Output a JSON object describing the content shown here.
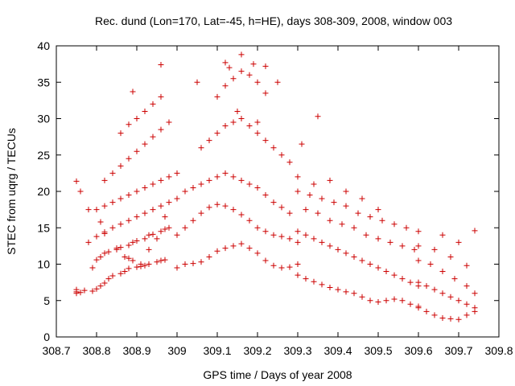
{
  "chart_data": {
    "type": "scatter",
    "title": "Rec. dund (Lon=170, Lat=-45, h=HE), days 308-309, 2008, window 003",
    "xlabel": "GPS time / Days of year 2008",
    "ylabel": "STEC from uqrg / TECUs",
    "xlim": [
      308.7,
      309.8
    ],
    "ylim": [
      0,
      40
    ],
    "xticks": [
      308.7,
      308.8,
      308.9,
      309.0,
      309.1,
      309.2,
      309.3,
      309.4,
      309.5,
      309.6,
      309.7,
      309.8
    ],
    "xtick_labels": [
      "308.7",
      "308.8",
      "308.9",
      "309",
      "309.1",
      "309.2",
      "309.3",
      "309.4",
      "309.5",
      "309.6",
      "309.7",
      "309.8"
    ],
    "yticks": [
      0,
      5,
      10,
      15,
      20,
      25,
      30,
      35,
      40
    ],
    "ytick_labels": [
      "0",
      "5",
      "10",
      "15",
      "20",
      "25",
      "30",
      "35",
      "40"
    ],
    "grid": false,
    "marker": "plus",
    "color": "#cc0000",
    "series": [
      {
        "x": [
          308.75,
          308.75,
          308.75,
          308.76,
          308.77,
          308.79,
          308.8,
          308.81,
          308.82,
          308.83,
          308.84,
          308.86,
          308.87,
          308.88,
          308.9,
          308.91,
          308.92,
          308.93,
          308.95,
          308.96,
          308.97,
          308.79,
          308.8,
          308.81,
          308.82,
          308.83,
          308.85,
          308.86,
          308.88,
          308.89,
          308.9,
          308.92,
          308.93,
          308.94,
          308.96,
          308.97,
          308.98,
          308.78,
          308.8,
          308.82,
          308.84,
          308.86,
          308.88,
          308.9,
          308.92,
          308.94,
          308.96,
          308.98,
          309.0,
          308.8,
          308.82,
          308.84,
          308.86,
          308.88,
          308.9,
          308.92,
          308.94,
          308.96,
          308.98,
          309.0,
          308.82,
          308.84,
          308.86,
          308.88,
          308.9,
          308.92,
          308.94,
          308.96,
          308.98,
          308.86,
          308.88,
          308.9,
          308.92,
          308.94,
          308.96,
          308.75,
          308.76,
          308.78,
          308.81,
          308.82,
          308.85,
          308.87,
          308.88,
          308.89,
          308.91,
          308.93,
          308.95,
          308.97
        ],
        "y": [
          6,
          6.2,
          6.5,
          6.1,
          6.4,
          6.3,
          6.6,
          7.0,
          7.4,
          8.0,
          8.4,
          8.7,
          9.0,
          9.4,
          9.6,
          9.7,
          9.8,
          10.0,
          10.3,
          10.5,
          10.6,
          9.5,
          10.6,
          11.0,
          11.5,
          11.7,
          12.0,
          12.3,
          12.6,
          13.0,
          13.2,
          13.5,
          14.0,
          14.1,
          14.5,
          14.8,
          15.0,
          13.0,
          13.8,
          14.4,
          15.0,
          15.5,
          16.0,
          16.5,
          17.0,
          17.5,
          18.0,
          18.5,
          19.0,
          17.5,
          18.0,
          18.5,
          19.0,
          19.5,
          20.0,
          20.5,
          21.0,
          21.5,
          22.0,
          22.5,
          21.5,
          22.5,
          23.5,
          24.5,
          25.5,
          26.5,
          27.5,
          28.5,
          29.5,
          28.0,
          29.2,
          30.0,
          31.0,
          32.0,
          33.0,
          21.4,
          20.0,
          17.5,
          15.8,
          14.2,
          12.2,
          11.0,
          10.8,
          10.5,
          10.0,
          12.0,
          13.5,
          16.5
        ]
      },
      {
        "x": [
          309.0,
          309.02,
          309.04,
          309.06,
          309.08,
          309.1,
          309.12,
          309.14,
          309.16,
          309.18,
          309.2,
          309.22,
          309.24,
          309.26,
          309.28,
          309.3,
          309.0,
          309.02,
          309.04,
          309.06,
          309.08,
          309.1,
          309.12,
          309.14,
          309.16,
          309.18,
          309.2,
          309.22,
          309.24,
          309.26,
          309.28,
          309.3,
          309.02,
          309.04,
          309.06,
          309.08,
          309.1,
          309.12,
          309.14,
          309.16,
          309.18,
          309.2,
          309.22,
          309.24,
          309.26,
          309.28,
          309.06,
          309.08,
          309.1,
          309.12,
          309.14,
          309.16,
          309.18,
          309.2,
          309.22,
          309.24,
          309.26,
          309.28,
          309.1,
          309.12,
          309.14,
          309.16,
          309.18,
          309.2,
          309.22,
          309.13,
          309.16,
          309.19,
          309.22,
          309.05,
          309.15,
          309.25,
          309.12,
          309.2,
          308.96,
          308.89
        ],
        "y": [
          9.5,
          10.0,
          10.1,
          10.3,
          11.0,
          11.8,
          12.2,
          12.5,
          12.8,
          12.2,
          11.5,
          10.5,
          9.8,
          9.5,
          9.6,
          10.0,
          14.0,
          15.0,
          16.0,
          17.0,
          17.8,
          18.2,
          18.0,
          17.5,
          16.8,
          16.0,
          15.0,
          14.5,
          14.0,
          13.8,
          13.5,
          13.0,
          20.0,
          20.5,
          21.0,
          21.5,
          22.0,
          22.5,
          22.0,
          21.5,
          21.0,
          20.5,
          19.5,
          18.5,
          17.8,
          17.0,
          26.0,
          27.0,
          28.0,
          29.0,
          29.5,
          30.0,
          29.0,
          28.0,
          27.0,
          26.0,
          25.0,
          24.0,
          33.0,
          34.5,
          35.5,
          36.5,
          36.0,
          35.0,
          33.5,
          37.0,
          38.8,
          37.5,
          37.2,
          35.0,
          31.0,
          35.0,
          37.7,
          29.5,
          37.4,
          33.7
        ]
      },
      {
        "x": [
          309.3,
          309.32,
          309.34,
          309.36,
          309.38,
          309.4,
          309.42,
          309.44,
          309.46,
          309.48,
          309.5,
          309.52,
          309.54,
          309.56,
          309.58,
          309.6,
          309.3,
          309.32,
          309.34,
          309.36,
          309.38,
          309.4,
          309.42,
          309.44,
          309.46,
          309.48,
          309.5,
          309.52,
          309.54,
          309.56,
          309.58,
          309.6,
          309.3,
          309.33,
          309.36,
          309.39,
          309.42,
          309.45,
          309.48,
          309.51,
          309.54,
          309.57,
          309.6,
          309.32,
          309.35,
          309.38,
          309.41,
          309.44,
          309.47,
          309.5,
          309.53,
          309.56,
          309.59,
          309.3,
          309.34,
          309.38,
          309.42,
          309.46,
          309.5,
          309.35,
          309.31
        ],
        "y": [
          8.5,
          8.0,
          7.6,
          7.2,
          6.8,
          6.5,
          6.2,
          6.0,
          5.5,
          5.0,
          4.8,
          5.0,
          5.2,
          5.0,
          4.5,
          4.2,
          14.5,
          14.0,
          13.5,
          13.0,
          12.5,
          12.0,
          11.5,
          11.0,
          10.5,
          10.0,
          9.5,
          9.0,
          8.5,
          8.0,
          7.5,
          7.0,
          20.0,
          19.5,
          19.0,
          18.5,
          18.0,
          17.0,
          16.5,
          16.0,
          15.5,
          15.0,
          14.5,
          17.5,
          17.0,
          16.0,
          15.5,
          15.0,
          14.0,
          13.5,
          13.0,
          12.5,
          12.0,
          22.0,
          21.0,
          21.5,
          20.0,
          19.0,
          17.5,
          30.3,
          26.5
        ]
      },
      {
        "x": [
          309.6,
          309.62,
          309.64,
          309.66,
          309.68,
          309.7,
          309.72,
          309.74,
          309.6,
          309.62,
          309.64,
          309.66,
          309.68,
          309.7,
          309.72,
          309.74,
          309.6,
          309.63,
          309.66,
          309.69,
          309.72,
          309.74,
          309.6,
          309.64,
          309.68,
          309.72,
          309.74,
          309.66,
          309.7
        ],
        "y": [
          4.0,
          3.5,
          3.0,
          2.6,
          2.5,
          2.4,
          3.0,
          3.5,
          7.5,
          7.0,
          6.5,
          6.0,
          5.5,
          5.0,
          4.5,
          4.0,
          10.5,
          10.0,
          9.0,
          8.0,
          7.0,
          6.0,
          12.5,
          12.0,
          11.0,
          9.8,
          14.6,
          14.0,
          13.0
        ]
      }
    ]
  }
}
